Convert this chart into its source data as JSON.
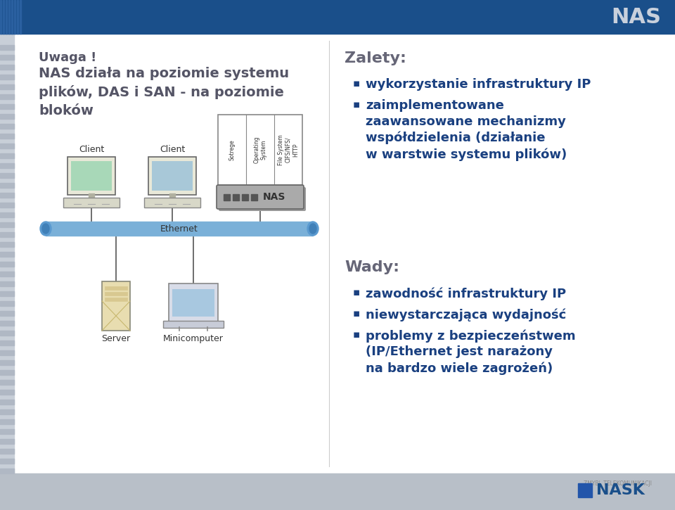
{
  "title_bar_color": "#1a4f8a",
  "title_text": "NAS",
  "title_text_color": "#c8d0dc",
  "bg_color": "#f0f0f0",
  "footer_color": "#b8bfc8",
  "uwaga_title": "Uwaga !",
  "uwaga_body": "NAS działa na poziomie systemu\nplików, DAS i SAN - na poziomie\nbloków",
  "uwaga_color": "#555566",
  "zalety_title": "Zalety:",
  "zalety_title_color": "#666677",
  "zalety_items": [
    "wykorzystanie infrastruktury IP",
    "zaimplementowane\nzaawansowane mechanizmy\nwspółdzielenia (działanie\nw warstwie systemu plików)"
  ],
  "zalety_color": "#1a4080",
  "wady_title": "Wady:",
  "wady_title_color": "#666677",
  "wady_items": [
    "zawodność infrastruktury IP",
    "niewystarczająca wydajność",
    "problemy z bezpieczeństwem\n(IP/Ethernet jest narażony\nna bardzo wiele zagrożeń)"
  ],
  "wady_color": "#1a4080",
  "ethernet_color": "#7ab0d8",
  "ethernet_label": "Ethernet",
  "nas_label": "NAS",
  "client1_label": "Client",
  "client2_label": "Client",
  "server_label": "Server",
  "minicomp_label": "Minicomputer",
  "sotrege_label": "Sotrege",
  "os_label": "Operating\nSystem",
  "filesystem_label": "File System\nCIFS/NFS/\nHTTP",
  "nask_small": "ZMYBL TELEKOMUNIKACJI",
  "nask_big": "NASK",
  "bullet_char": "▪"
}
